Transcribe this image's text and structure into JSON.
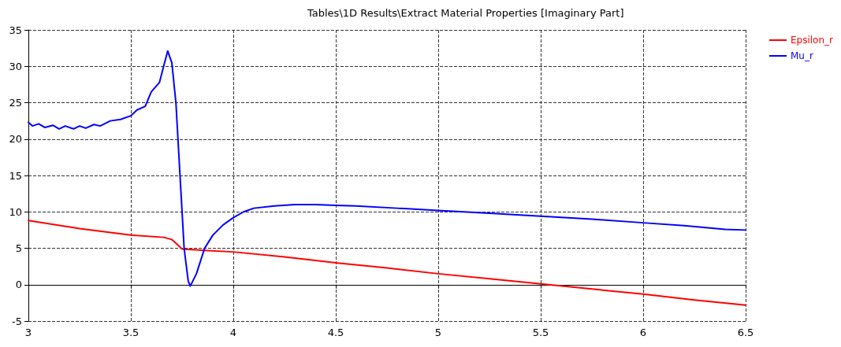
{
  "chart_data": {
    "type": "line",
    "title": "Tables\\1D Results\\Extract Material Properties [Imaginary Part]",
    "xlim": [
      3,
      6.5
    ],
    "xticks": [
      3,
      3.5,
      4,
      4.5,
      5,
      5.5,
      6,
      6.5
    ],
    "ylim": [
      -5,
      35
    ],
    "yticks": [
      -5,
      0,
      5,
      10,
      15,
      20,
      25,
      30,
      35
    ],
    "grid": true,
    "legend": "top right",
    "marker": "none",
    "line_style": "solid",
    "series": [
      {
        "name": "Epsilon_r",
        "color": "#ff0000",
        "x": [
          3,
          3.25,
          3.5,
          3.66,
          3.7,
          3.72,
          3.75,
          3.8,
          4,
          4.25,
          4.5,
          4.75,
          5,
          5.25,
          5.5,
          5.75,
          6,
          6.25,
          6.5
        ],
        "values": [
          8.8,
          7.7,
          6.8,
          6.5,
          6.2,
          5.7,
          4.9,
          4.8,
          4.5,
          3.8,
          3.0,
          2.3,
          1.5,
          0.8,
          0.1,
          -0.6,
          -1.3,
          -2.1,
          -2.8
        ]
      },
      {
        "name": "Mu_r",
        "color": "#0000ff",
        "x": [
          3,
          3.02,
          3.05,
          3.08,
          3.12,
          3.15,
          3.18,
          3.22,
          3.25,
          3.28,
          3.32,
          3.35,
          3.4,
          3.45,
          3.5,
          3.53,
          3.57,
          3.6,
          3.64,
          3.66,
          3.68,
          3.7,
          3.72,
          3.74,
          3.76,
          3.78,
          3.79,
          3.82,
          3.86,
          3.9,
          3.95,
          4,
          4.05,
          4.1,
          4.2,
          4.3,
          4.4,
          4.5,
          4.6,
          4.8,
          5,
          5.25,
          5.5,
          5.75,
          6,
          6.2,
          6.4,
          6.5
        ],
        "values": [
          22.3,
          21.8,
          22.1,
          21.6,
          21.9,
          21.4,
          21.8,
          21.4,
          21.8,
          21.5,
          22.0,
          21.8,
          22.5,
          22.7,
          23.2,
          24.0,
          24.5,
          26.5,
          27.8,
          30,
          32.1,
          30.5,
          25,
          15,
          5,
          0.5,
          -0.2,
          1.5,
          5,
          6.8,
          8.2,
          9.2,
          10,
          10.5,
          10.8,
          11.0,
          11.0,
          10.9,
          10.8,
          10.5,
          10.2,
          9.8,
          9.4,
          9.0,
          8.5,
          8.1,
          7.6,
          7.5
        ]
      }
    ]
  }
}
